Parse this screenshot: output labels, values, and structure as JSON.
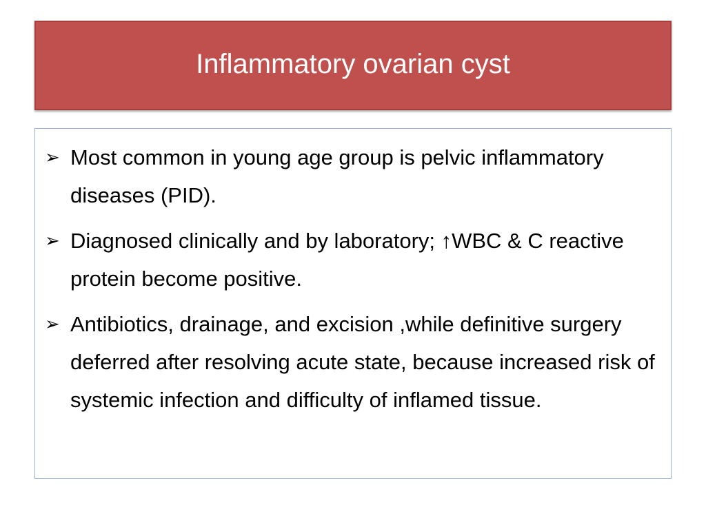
{
  "slide": {
    "title": "Inflammatory ovarian cyst",
    "bullet_icon": "arrowhead-bullet-icon",
    "colors": {
      "title_background": "#c0504d",
      "title_text": "#ffffff",
      "content_border": "#95b3d7",
      "body_text": "#000000"
    },
    "bullets": [
      {
        "marker": "➢",
        "text": "Most common in young age group is pelvic inflammatory diseases (PID)."
      },
      {
        "marker": "➢",
        "text": " Diagnosed clinically and by laboratory; ↑WBC & C reactive protein become positive."
      },
      {
        "marker": "➢",
        "text": "Antibiotics, drainage, and excision ,while definitive surgery deferred after resolving acute state, because increased risk of systemic infection and difficulty of inflamed tissue."
      }
    ]
  }
}
